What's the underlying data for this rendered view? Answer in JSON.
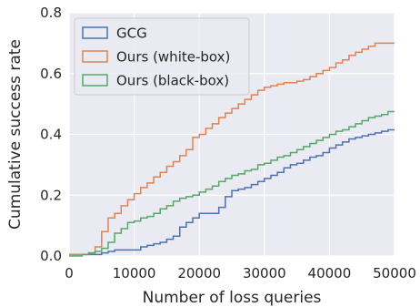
{
  "chart_data": {
    "type": "line",
    "title": "",
    "xlabel": "Number of loss queries",
    "ylabel": "Cumulative success rate",
    "xlim": [
      0,
      50000
    ],
    "ylim": [
      0,
      0.8
    ],
    "xticks": [
      0,
      10000,
      20000,
      30000,
      40000,
      50000
    ],
    "xtick_labels": [
      "0",
      "10000",
      "20000",
      "30000",
      "40000",
      "50000"
    ],
    "yticks": [
      0,
      0.2,
      0.4,
      0.6,
      0.8
    ],
    "ytick_labels": [
      "0.0",
      "0.2",
      "0.4",
      "0.6",
      "0.8"
    ],
    "grid": true,
    "legend_position": "top-left",
    "step": true,
    "series": [
      {
        "name": "GCG",
        "color": "#4c72b0",
        "x": [
          0,
          4000,
          5000,
          6000,
          7000,
          10000,
          11000,
          12000,
          13000,
          14000,
          15000,
          16000,
          17000,
          18000,
          19000,
          20000,
          21000,
          22000,
          23000,
          24000,
          25000,
          26000,
          27000,
          28000,
          29000,
          30000,
          31000,
          32000,
          33000,
          34000,
          35000,
          36000,
          37000,
          38000,
          39000,
          40000,
          41000,
          42000,
          43000,
          44000,
          45000,
          46000,
          47000,
          48000,
          49000,
          50000
        ],
        "y": [
          0.005,
          0.005,
          0.01,
          0.015,
          0.02,
          0.02,
          0.03,
          0.035,
          0.04,
          0.045,
          0.055,
          0.065,
          0.095,
          0.11,
          0.125,
          0.14,
          0.14,
          0.14,
          0.16,
          0.195,
          0.215,
          0.22,
          0.225,
          0.235,
          0.245,
          0.255,
          0.265,
          0.275,
          0.29,
          0.3,
          0.305,
          0.315,
          0.325,
          0.33,
          0.34,
          0.355,
          0.365,
          0.375,
          0.385,
          0.39,
          0.395,
          0.4,
          0.405,
          0.41,
          0.415,
          0.415
        ]
      },
      {
        "name": "Ours (white-box)",
        "color": "#dd8452",
        "x": [
          0,
          3000,
          4000,
          5000,
          6000,
          7000,
          8000,
          9000,
          10000,
          11000,
          12000,
          13000,
          14000,
          15000,
          16000,
          17000,
          18000,
          19000,
          20000,
          21000,
          22000,
          23000,
          24000,
          25000,
          26000,
          27000,
          28000,
          29000,
          30000,
          31000,
          32000,
          33000,
          34000,
          35000,
          36000,
          37000,
          38000,
          39000,
          40000,
          41000,
          42000,
          43000,
          44000,
          45000,
          46000,
          47000,
          48000,
          49000,
          50000
        ],
        "y": [
          0.005,
          0.01,
          0.03,
          0.08,
          0.125,
          0.14,
          0.165,
          0.185,
          0.205,
          0.225,
          0.24,
          0.26,
          0.275,
          0.295,
          0.31,
          0.33,
          0.35,
          0.39,
          0.4,
          0.42,
          0.435,
          0.455,
          0.47,
          0.485,
          0.5,
          0.515,
          0.53,
          0.545,
          0.555,
          0.56,
          0.565,
          0.57,
          0.57,
          0.575,
          0.58,
          0.59,
          0.6,
          0.61,
          0.62,
          0.635,
          0.645,
          0.66,
          0.67,
          0.68,
          0.69,
          0.7,
          0.7,
          0.7,
          0.7
        ]
      },
      {
        "name": "Ours (black-box)",
        "color": "#55a868",
        "x": [
          0,
          2000,
          3000,
          4000,
          5000,
          6000,
          7000,
          8000,
          9000,
          10000,
          11000,
          12000,
          13000,
          14000,
          15000,
          16000,
          17000,
          18000,
          19000,
          20000,
          21000,
          22000,
          23000,
          24000,
          25000,
          26000,
          27000,
          28000,
          29000,
          30000,
          31000,
          32000,
          33000,
          34000,
          35000,
          36000,
          37000,
          38000,
          39000,
          40000,
          41000,
          42000,
          43000,
          44000,
          45000,
          46000,
          47000,
          48000,
          49000,
          50000
        ],
        "y": [
          0.0,
          0.005,
          0.01,
          0.015,
          0.025,
          0.045,
          0.075,
          0.09,
          0.11,
          0.115,
          0.125,
          0.13,
          0.14,
          0.155,
          0.165,
          0.18,
          0.19,
          0.195,
          0.2,
          0.21,
          0.22,
          0.23,
          0.245,
          0.255,
          0.265,
          0.27,
          0.28,
          0.285,
          0.3,
          0.305,
          0.315,
          0.325,
          0.33,
          0.34,
          0.35,
          0.36,
          0.37,
          0.38,
          0.39,
          0.4,
          0.41,
          0.415,
          0.425,
          0.435,
          0.445,
          0.455,
          0.46,
          0.465,
          0.475,
          0.475
        ]
      }
    ]
  }
}
